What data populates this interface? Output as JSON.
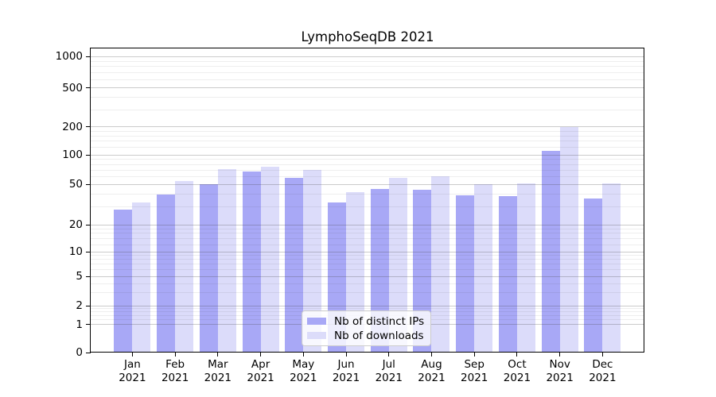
{
  "title": "LymphoSeqDB 2021",
  "chart_data": {
    "type": "bar",
    "title": "LymphoSeqDB 2021",
    "categories": [
      "Jan",
      "Feb",
      "Mar",
      "Apr",
      "May",
      "Jun",
      "Jul",
      "Aug",
      "Sep",
      "Oct",
      "Nov",
      "Dec"
    ],
    "x_tick_sublabel": "2021",
    "series": [
      {
        "name": "Nb of distinct IPs",
        "color": "#a8a8f6",
        "values": [
          28,
          40,
          50,
          68,
          58,
          33,
          45,
          44,
          39,
          38,
          110,
          36
        ]
      },
      {
        "name": "Nb of downloads",
        "color": "#dcdcfa",
        "values": [
          33,
          54,
          72,
          75,
          70,
          42,
          58,
          60,
          50,
          51,
          200,
          51
        ]
      }
    ],
    "y_axis": {
      "scale": "asinh-log",
      "ticks": [
        0,
        1,
        2,
        5,
        10,
        20,
        50,
        100,
        200,
        500,
        1000
      ],
      "minor_ticks": [
        1.2,
        1.4,
        1.6,
        1.8,
        3,
        4,
        6,
        7,
        8,
        9,
        12,
        14,
        16,
        18,
        30,
        40,
        60,
        70,
        80,
        90,
        120,
        140,
        160,
        180,
        300,
        400,
        600,
        700,
        800,
        900
      ],
      "range_top_value": 1200
    },
    "legend": {
      "position": "lower center",
      "entries": [
        "Nb of distinct IPs",
        "Nb of downloads"
      ]
    },
    "grid": "horizontal major+minor",
    "background_color": "#ffffff"
  }
}
